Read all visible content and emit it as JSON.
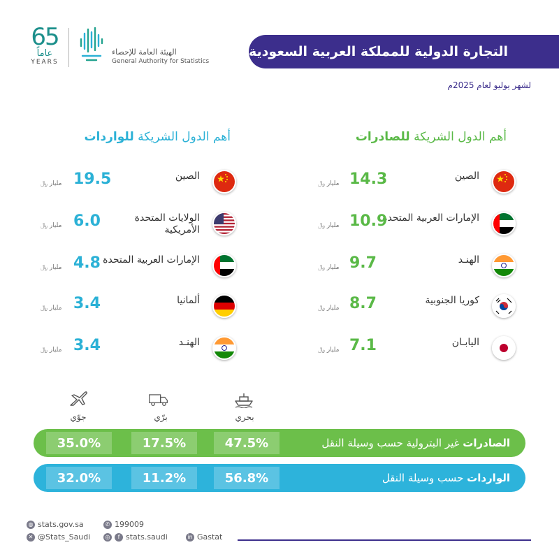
{
  "header": {
    "anniversary_number": "65",
    "anniversary_ar": "عاماً",
    "anniversary_en": "YEARS",
    "org_ar": "الهيئة العامة للإحصاء",
    "org_en": "General Authority for Statistics",
    "title": "التجارة الدولية للمملكة العربية السعودية",
    "subtitle": "لشهر يوليو لعام 2025م"
  },
  "exports": {
    "title_regular": "أهم الدول الشريكة",
    "title_bold": "للصادرات",
    "color": "#5ab947",
    "unit": "مليار ﷼",
    "items": [
      {
        "country": "الصين",
        "value": "14.3",
        "flag": "china-flag"
      },
      {
        "country": "الإمارات العربية المتحدة",
        "value": "10.9",
        "flag": "uae-flag"
      },
      {
        "country": "الهنـد",
        "value": "9.7",
        "flag": "india-flag"
      },
      {
        "country": "كوريا الجنوبية",
        "value": "8.7",
        "flag": "south-korea-flag"
      },
      {
        "country": "اليابـان",
        "value": "7.1",
        "flag": "japan-flag"
      }
    ]
  },
  "imports": {
    "title_regular": "أهم الدول الشريكة",
    "title_bold": "للواردات",
    "color": "#2bb1d6",
    "unit": "مليار ﷼",
    "items": [
      {
        "country": "الصين",
        "value": "19.5",
        "flag": "china-flag"
      },
      {
        "country": "الولايات المتحدة الأمريكية",
        "value": "6.0",
        "flag": "usa-flag"
      },
      {
        "country": "الإمارات العربية المتحدة",
        "value": "4.8",
        "flag": "uae-flag"
      },
      {
        "country": "ألمانيا",
        "value": "3.4",
        "flag": "germany-flag"
      },
      {
        "country": "الهنـد",
        "value": "3.4",
        "flag": "india-flag"
      }
    ]
  },
  "transport": {
    "modes": [
      {
        "label": "بحري",
        "icon": "ship-icon"
      },
      {
        "label": "برّي",
        "icon": "truck-icon"
      },
      {
        "label": "جوّي",
        "icon": "plane-icon"
      }
    ],
    "exports_bar": {
      "label_bold": "الصادرات",
      "label_regular": "غير البترولية حسب وسيلة النقل",
      "sea": "47.5%",
      "land": "17.5%",
      "air": "35.0%",
      "color": "#6cbf4a"
    },
    "imports_bar": {
      "label_bold": "الواردات",
      "label_regular": "حسب وسيلة النقل",
      "sea": "56.8%",
      "land": "11.2%",
      "air": "32.0%",
      "color": "#2db3db"
    }
  },
  "footer": {
    "website": "stats.gov.sa",
    "phone": "199009",
    "twitter": "@Stats_Saudi",
    "instagram_facebook": "stats.saudi",
    "linkedin": "Gastat"
  }
}
